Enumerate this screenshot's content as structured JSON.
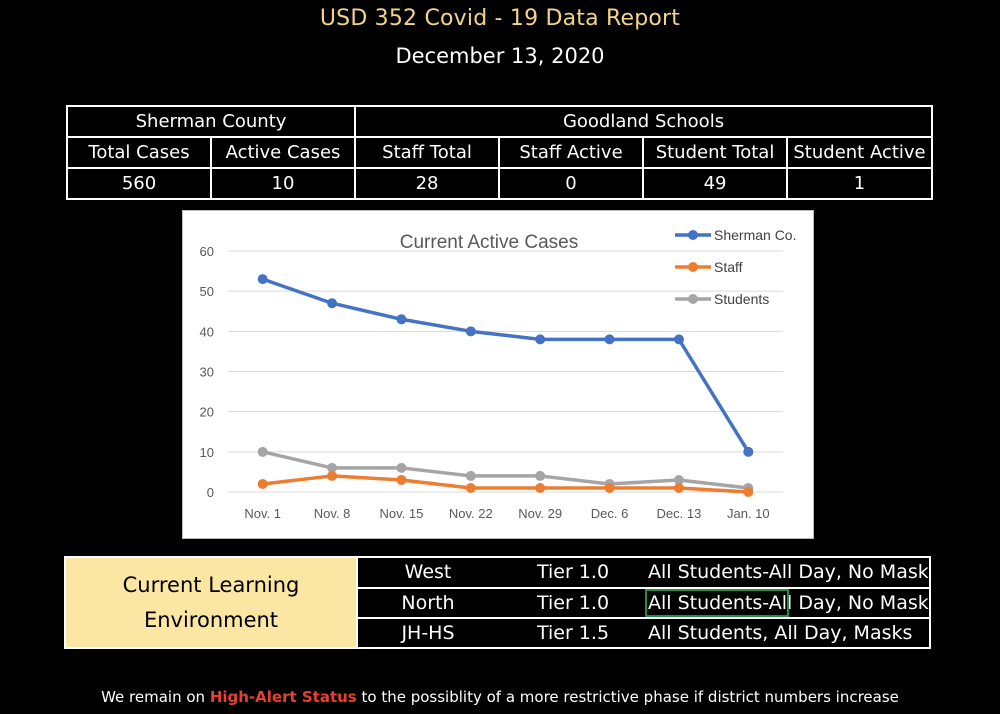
{
  "header": {
    "title": "USD 352 Covid - 19 Data Report",
    "date": "December 13, 2020"
  },
  "summary": {
    "groups": [
      "Sherman County",
      "Goodland Schools"
    ],
    "columns": [
      "Total Cases",
      "Active Cases",
      "Staff Total",
      "Staff Active",
      "Student Total",
      "Student Active"
    ],
    "values": [
      "560",
      "10",
      "28",
      "0",
      "49",
      "1"
    ]
  },
  "chart_data": {
    "type": "line",
    "title": "Current Active Cases",
    "categories": [
      "Nov. 1",
      "Nov. 8",
      "Nov. 15",
      "Nov. 22",
      "Nov. 29",
      "Dec. 6",
      "Dec. 13",
      "Jan. 10"
    ],
    "ylim": [
      0,
      60
    ],
    "yticks": [
      "0",
      "10",
      "20",
      "30",
      "40",
      "50",
      "60"
    ],
    "grid": true,
    "legend": "top-right",
    "series": [
      {
        "name": "Sherman Co.",
        "color": "#4472c4",
        "values": [
          53,
          47,
          43,
          40,
          38,
          38,
          38,
          10
        ]
      },
      {
        "name": "Staff",
        "color": "#ed7d31",
        "values": [
          2,
          4,
          3,
          1,
          1,
          1,
          1,
          0
        ]
      },
      {
        "name": "Students",
        "color": "#a5a5a5",
        "values": [
          10,
          6,
          6,
          4,
          4,
          2,
          3,
          1
        ]
      }
    ]
  },
  "learning": {
    "label_line1": "Current Learning",
    "label_line2": "Environment",
    "rows": [
      {
        "school": "West",
        "tier": "Tier 1.0",
        "policy": "All Students-All Day, No Mask"
      },
      {
        "school": "North",
        "tier": "Tier 1.0",
        "policy": "All Students-All Day, No Mask"
      },
      {
        "school": "JH-HS",
        "tier": "Tier 1.5",
        "policy": "All Students, All Day, Masks"
      }
    ]
  },
  "footer": {
    "prefix": "We remain on ",
    "alert": "High-Alert Status",
    "suffix": " to the possiblity of a more restrictive phase if district numbers increase"
  }
}
